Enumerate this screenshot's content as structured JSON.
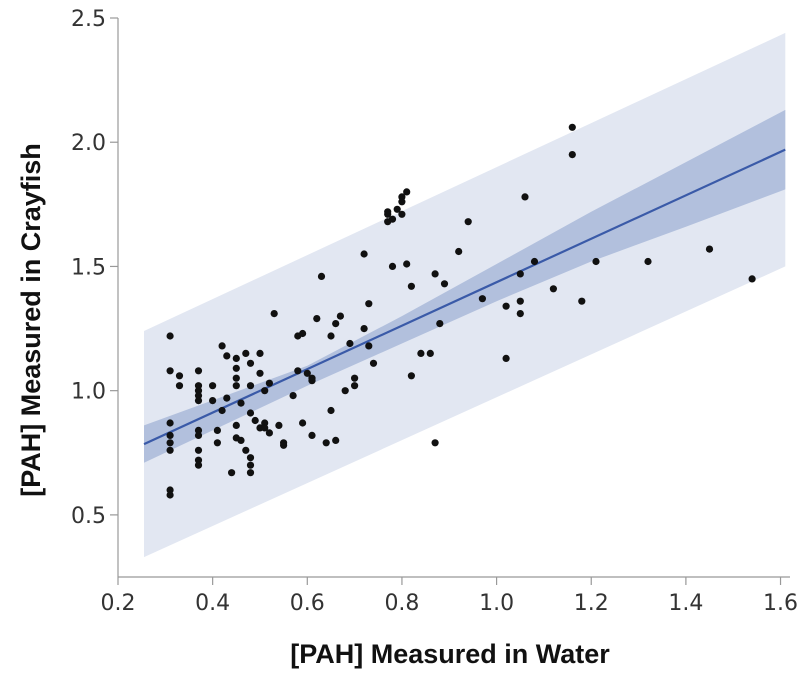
{
  "chart_data": {
    "type": "scatter",
    "xlabel": "[PAH] Measured in Water",
    "ylabel": "[PAH] Measured in Crayfish",
    "xlim": [
      0.2,
      1.62
    ],
    "ylim": [
      0.25,
      2.5
    ],
    "x_ticks": [
      0.2,
      0.4,
      0.6,
      0.8,
      1.0,
      1.2,
      1.4,
      1.6
    ],
    "x_tick_labels": [
      "0.2",
      "0.4",
      "0.6",
      "0.8",
      "1.0",
      "1.2",
      "1.4",
      "1.6"
    ],
    "y_ticks": [
      0.5,
      1.0,
      1.5,
      2.0,
      2.5
    ],
    "y_tick_labels": [
      "0.5",
      "1.0",
      "1.5",
      "2.0",
      "2.5"
    ],
    "grid": false,
    "legend": "none",
    "colors": {
      "points": "#111111",
      "fit_line": "#3a5aa8",
      "confidence_band": "#b2c0dd",
      "prediction_band": "#e2e7f2",
      "axis": "#999999"
    },
    "fit": {
      "x_range": [
        0.255,
        1.61
      ],
      "line": [
        [
          0.255,
          0.785
        ],
        [
          1.61,
          1.97
        ]
      ],
      "confidence_upper": [
        [
          0.255,
          0.86
        ],
        [
          0.6,
          1.1
        ],
        [
          0.8,
          1.3
        ],
        [
          1.0,
          1.51
        ],
        [
          1.2,
          1.72
        ],
        [
          1.4,
          1.92
        ],
        [
          1.61,
          2.13
        ]
      ],
      "confidence_lower": [
        [
          0.255,
          0.71
        ],
        [
          0.6,
          1.02
        ],
        [
          0.8,
          1.19
        ],
        [
          1.0,
          1.36
        ],
        [
          1.2,
          1.52
        ],
        [
          1.4,
          1.66
        ],
        [
          1.61,
          1.81
        ]
      ],
      "prediction_upper": [
        [
          0.255,
          1.24
        ],
        [
          1.61,
          2.44
        ]
      ],
      "prediction_lower": [
        [
          0.255,
          0.33
        ],
        [
          1.61,
          1.5
        ]
      ]
    },
    "points": [
      [
        0.31,
        1.22
      ],
      [
        0.31,
        1.08
      ],
      [
        0.31,
        0.87
      ],
      [
        0.31,
        0.82
      ],
      [
        0.31,
        0.79
      ],
      [
        0.31,
        0.76
      ],
      [
        0.31,
        0.6
      ],
      [
        0.31,
        0.58
      ],
      [
        0.33,
        1.06
      ],
      [
        0.33,
        1.02
      ],
      [
        0.37,
        1.08
      ],
      [
        0.37,
        1.02
      ],
      [
        0.37,
        1.0
      ],
      [
        0.37,
        0.98
      ],
      [
        0.37,
        0.96
      ],
      [
        0.37,
        0.84
      ],
      [
        0.37,
        0.82
      ],
      [
        0.37,
        0.76
      ],
      [
        0.37,
        0.72
      ],
      [
        0.37,
        0.7
      ],
      [
        0.4,
        1.02
      ],
      [
        0.4,
        0.96
      ],
      [
        0.41,
        0.84
      ],
      [
        0.41,
        0.79
      ],
      [
        0.42,
        1.18
      ],
      [
        0.42,
        0.92
      ],
      [
        0.43,
        1.14
      ],
      [
        0.43,
        0.97
      ],
      [
        0.44,
        0.67
      ],
      [
        0.45,
        1.13
      ],
      [
        0.45,
        1.09
      ],
      [
        0.45,
        1.05
      ],
      [
        0.45,
        1.02
      ],
      [
        0.45,
        0.86
      ],
      [
        0.45,
        0.81
      ],
      [
        0.46,
        0.95
      ],
      [
        0.46,
        0.8
      ],
      [
        0.47,
        1.15
      ],
      [
        0.47,
        0.76
      ],
      [
        0.48,
        1.11
      ],
      [
        0.48,
        1.02
      ],
      [
        0.48,
        0.91
      ],
      [
        0.48,
        0.73
      ],
      [
        0.48,
        0.7
      ],
      [
        0.48,
        0.67
      ],
      [
        0.49,
        0.88
      ],
      [
        0.5,
        1.15
      ],
      [
        0.5,
        1.07
      ],
      [
        0.5,
        0.85
      ],
      [
        0.51,
        1.0
      ],
      [
        0.51,
        0.87
      ],
      [
        0.51,
        0.85
      ],
      [
        0.52,
        1.03
      ],
      [
        0.52,
        0.83
      ],
      [
        0.53,
        1.31
      ],
      [
        0.54,
        0.86
      ],
      [
        0.55,
        0.79
      ],
      [
        0.55,
        0.78
      ],
      [
        0.57,
        0.98
      ],
      [
        0.58,
        1.22
      ],
      [
        0.58,
        1.08
      ],
      [
        0.59,
        1.23
      ],
      [
        0.59,
        0.87
      ],
      [
        0.6,
        1.07
      ],
      [
        0.61,
        1.05
      ],
      [
        0.61,
        1.04
      ],
      [
        0.61,
        0.82
      ],
      [
        0.62,
        1.29
      ],
      [
        0.63,
        1.46
      ],
      [
        0.64,
        0.79
      ],
      [
        0.65,
        1.22
      ],
      [
        0.65,
        0.92
      ],
      [
        0.66,
        1.27
      ],
      [
        0.66,
        0.8
      ],
      [
        0.67,
        1.3
      ],
      [
        0.68,
        1.0
      ],
      [
        0.69,
        1.19
      ],
      [
        0.7,
        1.02
      ],
      [
        0.7,
        1.05
      ],
      [
        0.72,
        1.55
      ],
      [
        0.72,
        1.25
      ],
      [
        0.73,
        1.18
      ],
      [
        0.73,
        1.35
      ],
      [
        0.74,
        1.11
      ],
      [
        0.77,
        1.71
      ],
      [
        0.77,
        1.68
      ],
      [
        0.77,
        1.72
      ],
      [
        0.78,
        1.69
      ],
      [
        0.78,
        1.5
      ],
      [
        0.79,
        1.73
      ],
      [
        0.8,
        1.71
      ],
      [
        0.8,
        1.76
      ],
      [
        0.8,
        1.78
      ],
      [
        0.81,
        1.8
      ],
      [
        0.81,
        1.51
      ],
      [
        0.82,
        1.42
      ],
      [
        0.82,
        1.06
      ],
      [
        0.84,
        1.15
      ],
      [
        0.86,
        1.15
      ],
      [
        0.87,
        1.47
      ],
      [
        0.87,
        0.79
      ],
      [
        0.88,
        1.27
      ],
      [
        0.89,
        1.43
      ],
      [
        0.92,
        1.56
      ],
      [
        0.94,
        1.68
      ],
      [
        0.97,
        1.37
      ],
      [
        1.02,
        1.34
      ],
      [
        1.02,
        1.13
      ],
      [
        1.05,
        1.47
      ],
      [
        1.05,
        1.36
      ],
      [
        1.05,
        1.31
      ],
      [
        1.06,
        1.78
      ],
      [
        1.08,
        1.52
      ],
      [
        1.12,
        1.41
      ],
      [
        1.16,
        2.06
      ],
      [
        1.16,
        1.95
      ],
      [
        1.18,
        1.36
      ],
      [
        1.21,
        1.52
      ],
      [
        1.32,
        1.52
      ],
      [
        1.45,
        1.57
      ],
      [
        1.54,
        1.45
      ]
    ]
  }
}
